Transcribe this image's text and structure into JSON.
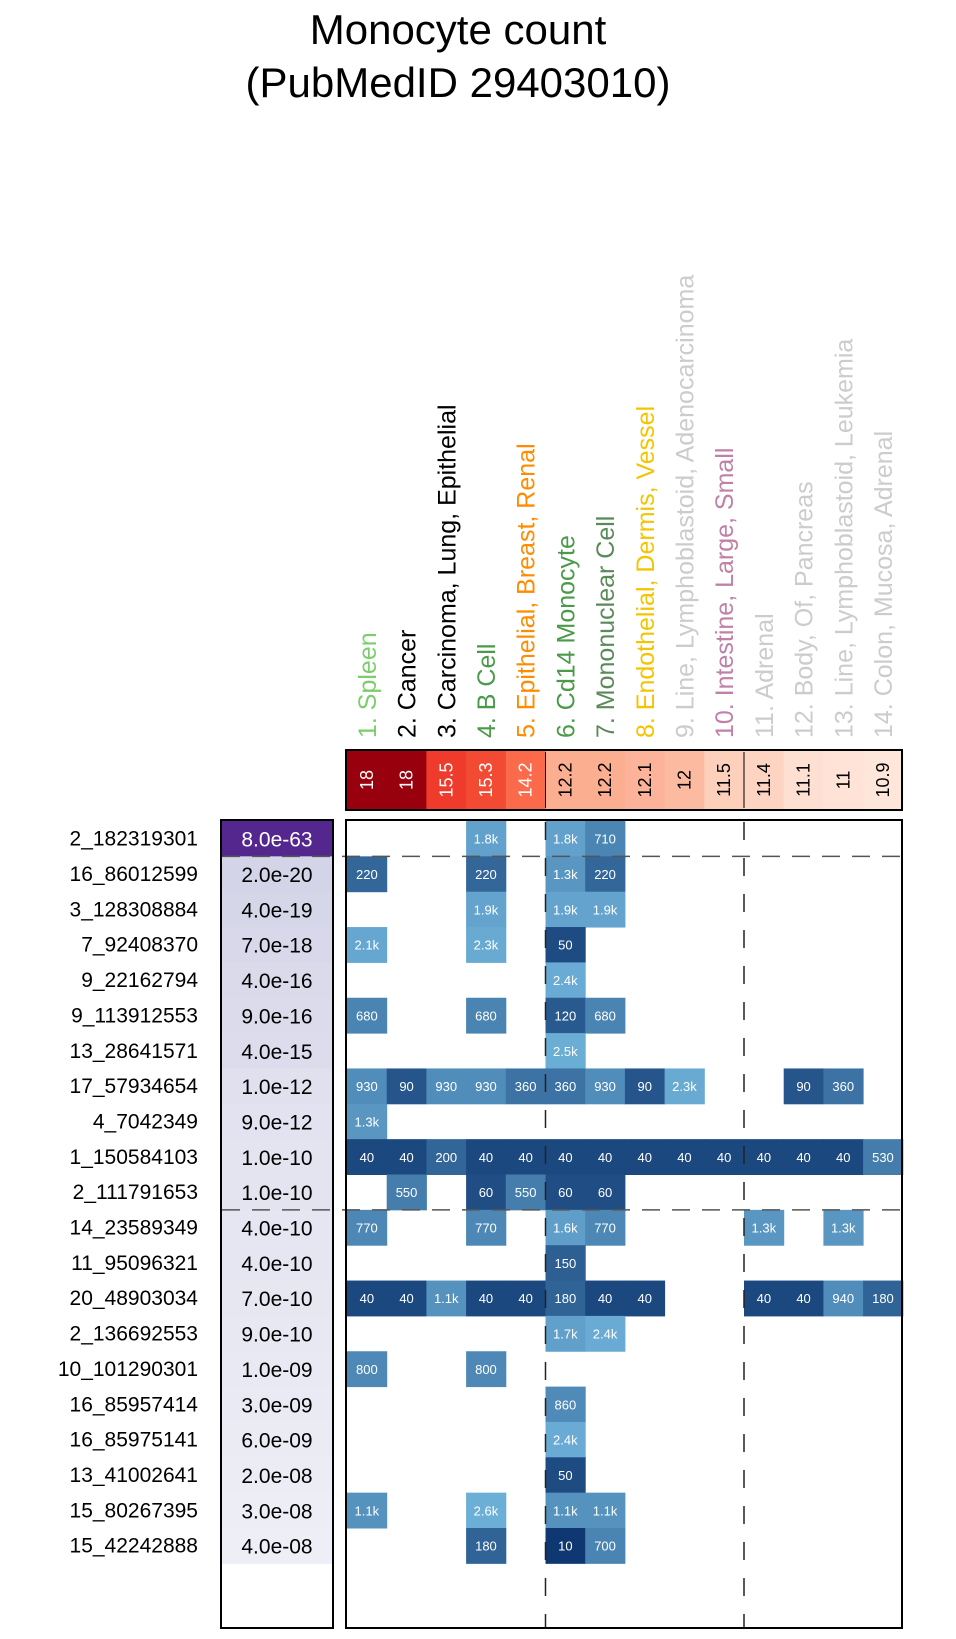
{
  "chart_data": {
    "type": "heatmap",
    "title": "Monocyte count",
    "subtitle": "(PubMedID 29403010)",
    "columns": [
      {
        "index": "1.",
        "parts": [
          {
            "text": "Spleen",
            "color": "#7ccd6b"
          }
        ],
        "num_color": "#7ccd6b"
      },
      {
        "index": "2.",
        "parts": [
          {
            "text": "Cancer",
            "color": "#000000"
          }
        ],
        "num_color": "#000000"
      },
      {
        "index": "3.",
        "parts": [
          {
            "text": "Carcinoma, Lung, Epithelial",
            "color": "#000000"
          }
        ],
        "num_color": "#000000"
      },
      {
        "index": "4.",
        "parts": [
          {
            "text": "B Cell",
            "color": "#4a9a4a"
          }
        ],
        "num_color": "#4a9a4a"
      },
      {
        "index": "5.",
        "parts": [
          {
            "text": "Epithelial, ",
            "color": "#ff8c00"
          },
          {
            "text": "Breast, ",
            "color": "#ff8c00"
          },
          {
            "text": "Renal",
            "color": "#ff8c00"
          }
        ],
        "num_color": "#ff8c00"
      },
      {
        "index": "6.",
        "parts": [
          {
            "text": "Cd14 Monocyte",
            "color": "#4a9a4a"
          }
        ],
        "num_color": "#4a9a4a"
      },
      {
        "index": "7.",
        "parts": [
          {
            "text": "Mononuclear Cell",
            "color": "#5a8a5a"
          }
        ],
        "num_color": "#5a8a5a"
      },
      {
        "index": "8.",
        "parts": [
          {
            "text": "Endothelial, ",
            "color": "#f5c400"
          },
          {
            "text": "Dermis, ",
            "color": "#f5c400"
          },
          {
            "text": "Vessel",
            "color": "#f5c400"
          }
        ],
        "num_color": "#f5c400"
      },
      {
        "index": "9.",
        "parts": [
          {
            "text": "Line, Lymphoblastoid, Adenocarcinoma",
            "color": "#cccccc"
          }
        ],
        "num_color": "#cccccc"
      },
      {
        "index": "10.",
        "parts": [
          {
            "text": "Intestine, Large, Small",
            "color": "#c080a8"
          }
        ],
        "num_color": "#c080a8"
      },
      {
        "index": "11.",
        "parts": [
          {
            "text": "Adrenal",
            "color": "#cccccc"
          }
        ],
        "num_color": "#cccccc"
      },
      {
        "index": "12.",
        "parts": [
          {
            "text": "Body, Of, Pancreas",
            "color": "#cccccc"
          }
        ],
        "num_color": "#cccccc"
      },
      {
        "index": "13.",
        "parts": [
          {
            "text": "Line, Lymphoblastoid, Leukemia",
            "color": "#cccccc"
          }
        ],
        "num_color": "#cccccc"
      },
      {
        "index": "14.",
        "parts": [
          {
            "text": "Colon, Mucosa, Adrenal",
            "color": "#cccccc"
          }
        ],
        "num_color": "#cccccc"
      }
    ],
    "enrichment": [
      "18",
      "18",
      "15.5",
      "15.3",
      "14.2",
      "12.2",
      "12.2",
      "12.1",
      "12",
      "11.5",
      "11.4",
      "11.1",
      "11",
      "10.9"
    ],
    "enrichment_colors": [
      "#99000d",
      "#99000d",
      "#ef3b2c",
      "#f24a33",
      "#fb6a4a",
      "#fcae91",
      "#fcae91",
      "#fcb399",
      "#fcbba1",
      "#fdd0bc",
      "#fdd4c2",
      "#fee0d2",
      "#fee3d6",
      "#fee6da"
    ],
    "rows": [
      {
        "snp": "2_182319301",
        "pvalue": "8.0e-63",
        "pcolor": "#54278f",
        "ptext": "#ffffff",
        "cells": [
          null,
          null,
          null,
          "1.8k",
          null,
          "1.8k",
          "710",
          null,
          null,
          null,
          null,
          null,
          null,
          null
        ]
      },
      {
        "snp": "16_86012599",
        "pvalue": "2.0e-20",
        "pcolor": "#d4d4e8",
        "ptext": "#000000",
        "cells": [
          "220",
          null,
          null,
          "220",
          null,
          "1.3k",
          "220",
          null,
          null,
          null,
          null,
          null,
          null,
          null
        ]
      },
      {
        "snp": "3_128308884",
        "pvalue": "4.0e-19",
        "pcolor": "#d6d6e9",
        "ptext": "#000000",
        "cells": [
          null,
          null,
          null,
          "1.9k",
          null,
          "1.9k",
          "1.9k",
          null,
          null,
          null,
          null,
          null,
          null,
          null
        ]
      },
      {
        "snp": "7_92408370",
        "pvalue": "7.0e-18",
        "pcolor": "#d8d8ea",
        "ptext": "#000000",
        "cells": [
          "2.1k",
          null,
          null,
          "2.3k",
          null,
          "50",
          null,
          null,
          null,
          null,
          null,
          null,
          null,
          null
        ]
      },
      {
        "snp": "9_22162794",
        "pvalue": "4.0e-16",
        "pcolor": "#dadaeb",
        "ptext": "#000000",
        "cells": [
          null,
          null,
          null,
          null,
          null,
          "2.4k",
          null,
          null,
          null,
          null,
          null,
          null,
          null,
          null
        ]
      },
      {
        "snp": "9_113912553",
        "pvalue": "9.0e-16",
        "pcolor": "#dbdbec",
        "ptext": "#000000",
        "cells": [
          "680",
          null,
          null,
          "680",
          null,
          "120",
          "680",
          null,
          null,
          null,
          null,
          null,
          null,
          null
        ]
      },
      {
        "snp": "13_28641571",
        "pvalue": "4.0e-15",
        "pcolor": "#dcdcec",
        "ptext": "#000000",
        "cells": [
          null,
          null,
          null,
          null,
          null,
          "2.5k",
          null,
          null,
          null,
          null,
          null,
          null,
          null,
          null
        ]
      },
      {
        "snp": "17_57934654",
        "pvalue": "1.0e-12",
        "pcolor": "#e0e0ef",
        "ptext": "#000000",
        "cells": [
          "930",
          "90",
          "930",
          "930",
          "360",
          "360",
          "930",
          "90",
          "2.3k",
          null,
          null,
          "90",
          "360",
          null
        ]
      },
      {
        "snp": "4_7042349",
        "pvalue": "9.0e-12",
        "pcolor": "#e2e2f0",
        "ptext": "#000000",
        "cells": [
          "1.3k",
          null,
          null,
          null,
          null,
          null,
          null,
          null,
          null,
          null,
          null,
          null,
          null,
          null
        ]
      },
      {
        "snp": "1_150584103",
        "pvalue": "1.0e-10",
        "pcolor": "#e4e4f1",
        "ptext": "#000000",
        "cells": [
          "40",
          "40",
          "200",
          "40",
          "40",
          "40",
          "40",
          "40",
          "40",
          "40",
          "40",
          "40",
          "40",
          "530"
        ]
      },
      {
        "snp": "2_111791653",
        "pvalue": "1.0e-10",
        "pcolor": "#e4e4f1",
        "ptext": "#000000",
        "cells": [
          null,
          "550",
          null,
          "60",
          "550",
          "60",
          "60",
          null,
          null,
          null,
          null,
          null,
          null,
          null
        ]
      },
      {
        "snp": "14_23589349",
        "pvalue": "4.0e-10",
        "pcolor": "#e6e6f2",
        "ptext": "#000000",
        "cells": [
          "770",
          null,
          null,
          "770",
          null,
          "1.6k",
          "770",
          null,
          null,
          null,
          "1.3k",
          null,
          "1.3k",
          null
        ]
      },
      {
        "snp": "11_95096321",
        "pvalue": "4.0e-10",
        "pcolor": "#e6e6f2",
        "ptext": "#000000",
        "cells": [
          null,
          null,
          null,
          null,
          null,
          "150",
          null,
          null,
          null,
          null,
          null,
          null,
          null,
          null
        ]
      },
      {
        "snp": "20_48903034",
        "pvalue": "7.0e-10",
        "pcolor": "#e7e7f2",
        "ptext": "#000000",
        "cells": [
          "40",
          "40",
          "1.1k",
          "40",
          "40",
          "180",
          "40",
          "40",
          null,
          null,
          "40",
          "40",
          "940",
          "180"
        ]
      },
      {
        "snp": "2_136692553",
        "pvalue": "9.0e-10",
        "pcolor": "#e8e8f3",
        "ptext": "#000000",
        "cells": [
          null,
          null,
          null,
          null,
          null,
          "1.7k",
          "2.4k",
          null,
          null,
          null,
          null,
          null,
          null,
          null
        ]
      },
      {
        "snp": "10_101290301",
        "pvalue": "1.0e-09",
        "pcolor": "#e9e9f3",
        "ptext": "#000000",
        "cells": [
          "800",
          null,
          null,
          "800",
          null,
          null,
          null,
          null,
          null,
          null,
          null,
          null,
          null,
          null
        ]
      },
      {
        "snp": "16_85957414",
        "pvalue": "3.0e-09",
        "pcolor": "#eaeaf4",
        "ptext": "#000000",
        "cells": [
          null,
          null,
          null,
          null,
          null,
          "860",
          null,
          null,
          null,
          null,
          null,
          null,
          null,
          null
        ]
      },
      {
        "snp": "16_85975141",
        "pvalue": "6.0e-09",
        "pcolor": "#ebebf4",
        "ptext": "#000000",
        "cells": [
          null,
          null,
          null,
          null,
          null,
          "2.4k",
          null,
          null,
          null,
          null,
          null,
          null,
          null,
          null
        ]
      },
      {
        "snp": "13_41002641",
        "pvalue": "2.0e-08",
        "pcolor": "#ececf5",
        "ptext": "#000000",
        "cells": [
          null,
          null,
          null,
          null,
          null,
          "50",
          null,
          null,
          null,
          null,
          null,
          null,
          null,
          null
        ]
      },
      {
        "snp": "15_80267395",
        "pvalue": "3.0e-08",
        "pcolor": "#ededf5",
        "ptext": "#000000",
        "cells": [
          "1.1k",
          null,
          null,
          "2.6k",
          null,
          "1.1k",
          "1.1k",
          null,
          null,
          null,
          null,
          null,
          null,
          null
        ]
      },
      {
        "snp": "15_42242888",
        "pvalue": "4.0e-08",
        "pcolor": "#eeeef6",
        "ptext": "#000000",
        "cells": [
          null,
          null,
          null,
          "180",
          null,
          "10",
          "700",
          null,
          null,
          null,
          null,
          null,
          null,
          null
        ]
      }
    ],
    "cell_color_scale": {
      "low": "#08306b",
      "high": "#6baed6",
      "unit": "bp distance (smaller = darker)"
    },
    "dashed_row_separators_after": [
      1,
      11
    ],
    "dashed_col_separators_after": [
      5,
      10
    ]
  }
}
